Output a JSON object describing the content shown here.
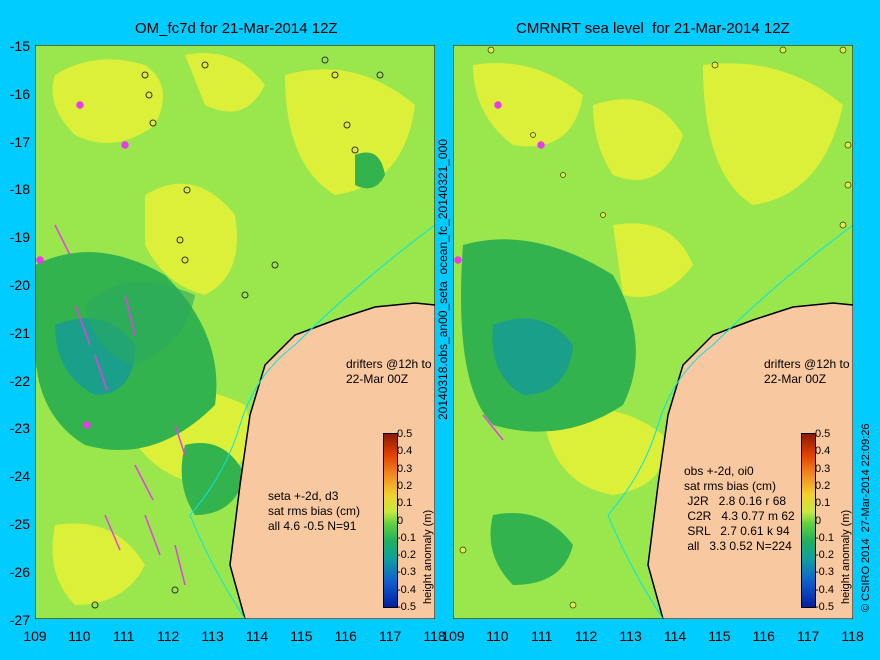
{
  "left_title": "OM_fc7d for 21-Mar-2014 12Z",
  "right_title": "CMRNRT sea level  for 21-Mar-2014 12Z",
  "y_ticks": [
    "-15",
    "-16",
    "-17",
    "-18",
    "-19",
    "-20",
    "-21",
    "-22",
    "-23",
    "-24",
    "-25",
    "-26",
    "-27"
  ],
  "x_ticks": [
    "109",
    "110",
    "111",
    "112",
    "113",
    "114",
    "115",
    "116",
    "117",
    "118"
  ],
  "middle_label": "20140318.obs_an00_seta  ocean_fc_20140321_000",
  "right_edge_label": "© CSIRO 2014  27-Mar-2014 22:09:26",
  "left_drifters": "drifters @12h to\n22-Mar 00Z",
  "right_drifters": "drifters @12h to\n22-Mar 00Z",
  "left_stats": "seta +-2d, d3\nsat rms bias (cm)\nall 4.6 -0.5 N=91",
  "right_stats": "obs +-2d, oi0\nsat rms bias (cm)\n J2R   2.8 0.16 r 68\n C2R   4.3 0.77 m 62\n SRL   2.7 0.61 k 94\n all   3.3 0.52 N=224",
  "colorbar_ticks": [
    "0.5",
    "0.4",
    "0.3",
    "0.2",
    "0.1",
    "0",
    "-0.1",
    "-0.2",
    "-0.3",
    "-0.4",
    "-0.5"
  ],
  "colorbar_label": "height anomaly (m)",
  "colors": {
    "background": "#00ccff",
    "land": "#f8c8a0",
    "ocean_base": "#99e64d",
    "ocean_high": "#dcf03a",
    "ocean_low": "#33b34d",
    "ocean_deep": "#1aa08a",
    "drifter": "#e83ce8",
    "track": "#00e6e6"
  }
}
